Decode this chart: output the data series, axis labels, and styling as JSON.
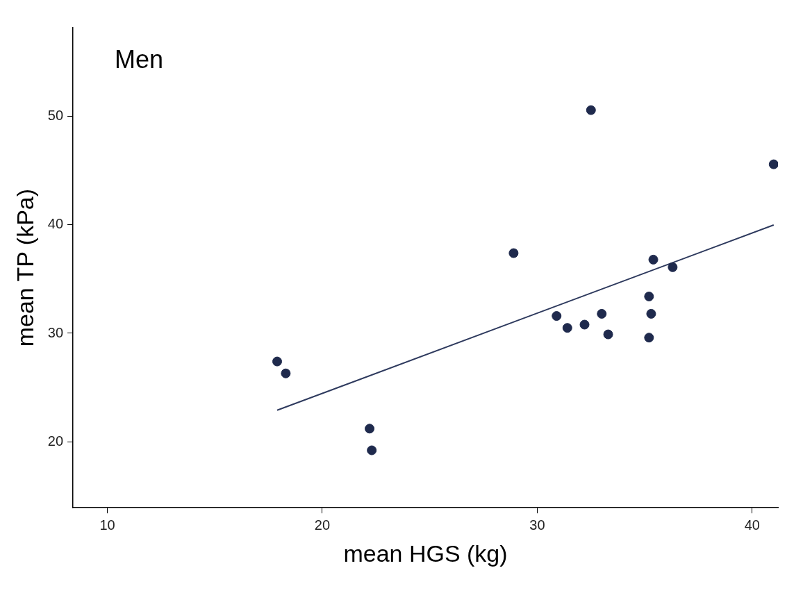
{
  "chart_data": {
    "type": "scatter",
    "xlabel": "mean HGS (kg)",
    "ylabel": "mean TP (kPa)",
    "annotations": [
      "Men"
    ],
    "xlim": [
      8.4,
      41.2
    ],
    "xticks": [
      10,
      20,
      30,
      40
    ],
    "ylim": [
      13.9,
      58.2
    ],
    "yticks": [
      20,
      30,
      40,
      50
    ],
    "grid": false,
    "legend": false,
    "marker": "circle",
    "series": [
      {
        "color": "#1f2a4d",
        "x": [
          17.9,
          18.3,
          22.2,
          22.3,
          28.9,
          32.5,
          41.0,
          35.4,
          36.3,
          35.2,
          35.3,
          30.9,
          31.4,
          32.2,
          33.0,
          33.3,
          35.2
        ],
        "values": [
          27.4,
          26.3,
          21.2,
          19.2,
          37.4,
          50.6,
          45.6,
          36.8,
          36.1,
          33.4,
          31.8,
          31.6,
          30.5,
          30.8,
          31.8,
          29.9,
          29.6
        ]
      },
      {
        "type": "line",
        "color": "#2e3a5e",
        "x": [
          17.9,
          41.0
        ],
        "values": [
          22.9,
          40.0
        ],
        "marker": "none",
        "line_style": "solid"
      }
    ]
  }
}
